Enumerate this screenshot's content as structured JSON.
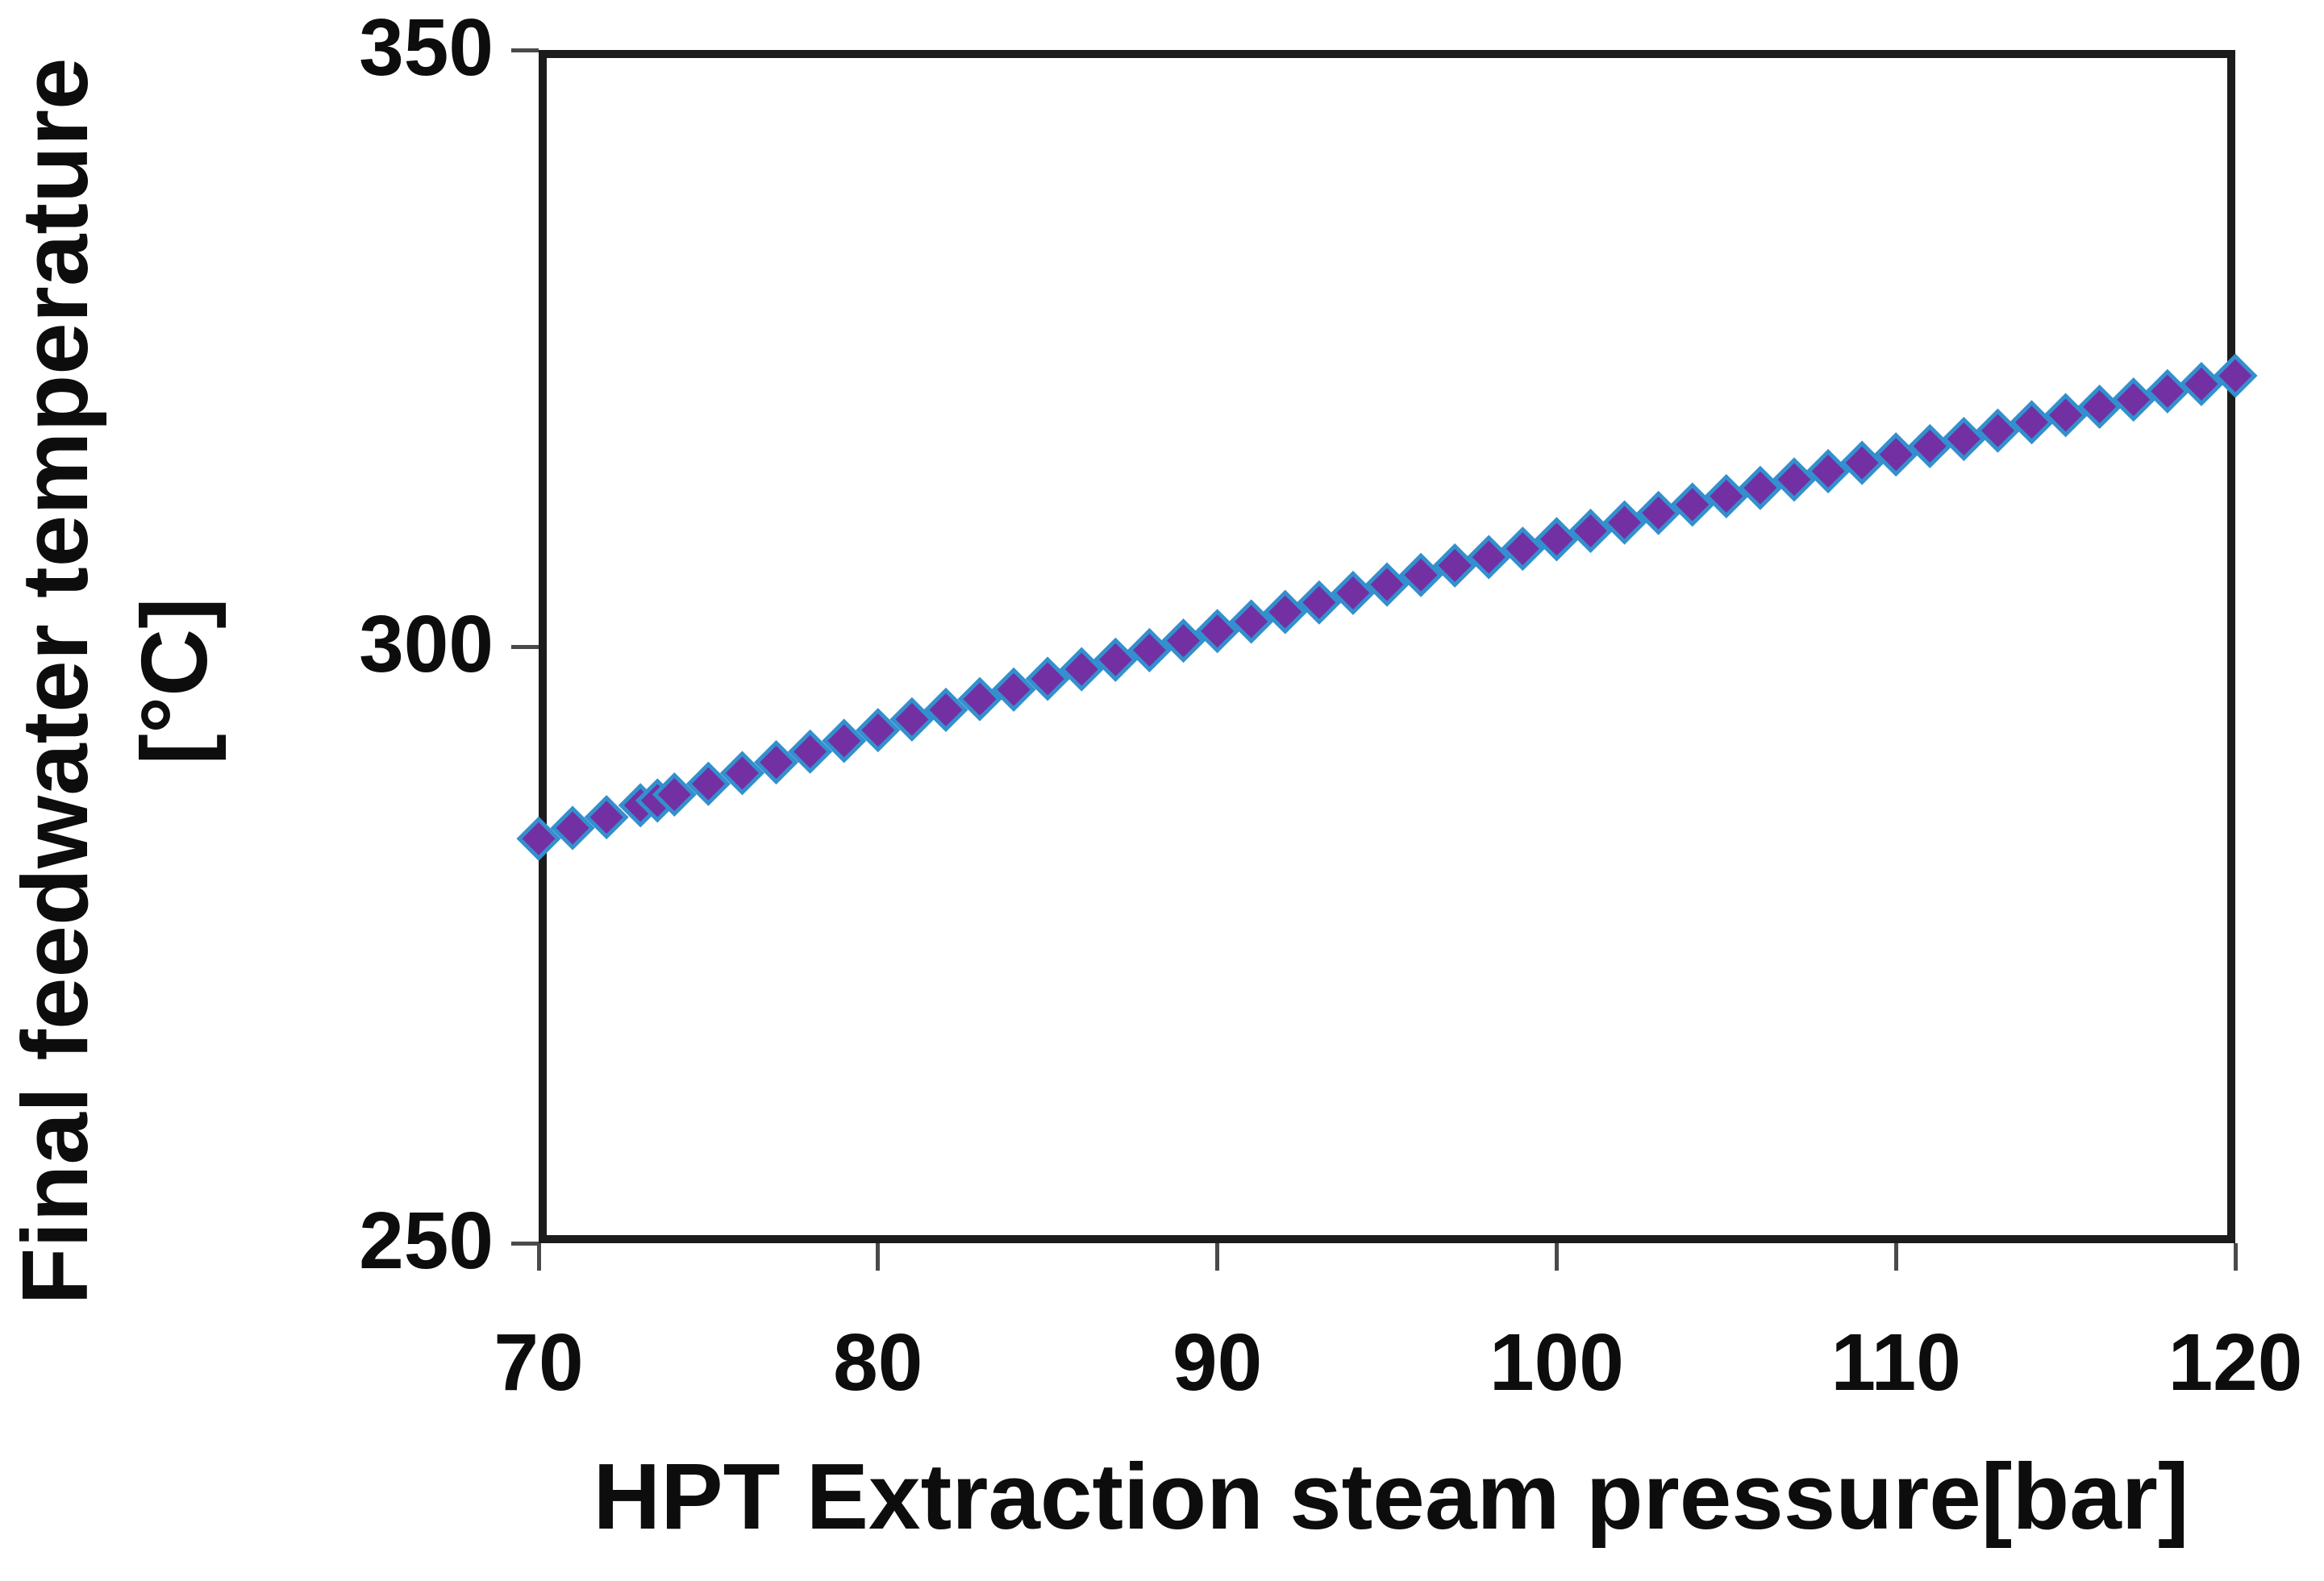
{
  "chart_data": {
    "type": "scatter",
    "title": "",
    "xlabel": "HPT Extraction steam pressure[bar]",
    "ylabel": "Final feedwater temperature [°C]",
    "ylabel_lines": [
      "Final feedwater temperature",
      "[°C]"
    ],
    "xlim": [
      70,
      120
    ],
    "ylim": [
      250,
      350
    ],
    "x_ticks": [
      70,
      80,
      90,
      100,
      110,
      120
    ],
    "y_ticks": [
      250,
      300,
      350
    ],
    "grid": false,
    "legend_position": "none",
    "marker": {
      "shape": "diamond",
      "fill": "#7230A3",
      "stroke": "#3390CE"
    },
    "series": [
      {
        "name": "Final feedwater temperature",
        "x": [
          70,
          71,
          72,
          73,
          73.5,
          74,
          75,
          76,
          77,
          78,
          79,
          80,
          81,
          82,
          83,
          84,
          85,
          86,
          87,
          88,
          89,
          90,
          91,
          92,
          93,
          94,
          95,
          96,
          97,
          98,
          99,
          100,
          101,
          102,
          103,
          104,
          105,
          106,
          107,
          108,
          109,
          110,
          111,
          112,
          113,
          114,
          115,
          116,
          117,
          118,
          119,
          120
        ],
        "y": [
          283.9,
          284.8,
          285.7,
          286.7,
          287.1,
          287.6,
          288.5,
          289.4,
          290.3,
          291.2,
          292.1,
          293.0,
          293.9,
          294.7,
          295.6,
          296.4,
          297.3,
          298.1,
          298.9,
          299.7,
          300.5,
          301.3,
          302.1,
          302.9,
          303.7,
          304.5,
          305.2,
          306.0,
          306.8,
          307.5,
          308.2,
          309.0,
          309.7,
          310.4,
          311.2,
          311.9,
          312.6,
          313.3,
          314.0,
          314.7,
          315.4,
          316.1,
          316.8,
          317.4,
          318.1,
          318.8,
          319.4,
          320.1,
          320.7,
          321.4,
          322.0,
          322.7
        ]
      }
    ]
  }
}
